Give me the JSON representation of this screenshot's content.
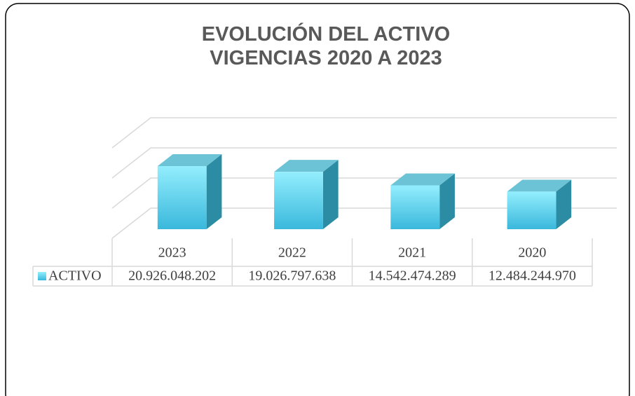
{
  "chart_data": {
    "type": "bar",
    "title": [
      "EVOLUCIÓN DEL ACTIVO",
      "VIGENCIAS 2020 A 2023"
    ],
    "categories": [
      "2023",
      "2022",
      "2021",
      "2020"
    ],
    "series": [
      {
        "name": "ACTIVO",
        "color": "#4cc8ea",
        "values": [
          20926048202,
          19026797638,
          14542474289,
          12484244970
        ],
        "value_labels": [
          "20.926.048.202",
          "19.026.797.638",
          "14.542.474.289",
          "12.484.244.970"
        ]
      }
    ],
    "ylim": [
      0,
      30000000000
    ],
    "yticks": [
      0,
      10000000000,
      20000000000,
      30000000000
    ],
    "grid": true
  }
}
